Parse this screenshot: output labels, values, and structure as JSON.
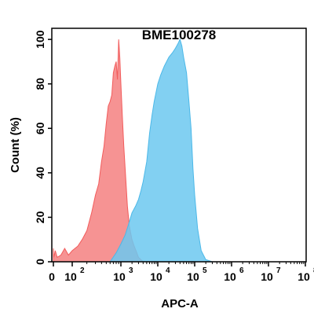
{
  "chart_data": {
    "type": "area",
    "title": "BME100278",
    "xlabel": "APC-A",
    "ylabel": "Count  (%)",
    "xscale": "biexponential-log",
    "xlim": [
      0,
      100000000
    ],
    "ylim": [
      0,
      105
    ],
    "grid": false,
    "legend": "none",
    "y_ticks": [
      {
        "value": 0,
        "label": "0"
      },
      {
        "value": 20,
        "label": "20"
      },
      {
        "value": 40,
        "label": "40"
      },
      {
        "value": 60,
        "label": "60"
      },
      {
        "value": 80,
        "label": "80"
      },
      {
        "value": 100,
        "label": "100"
      }
    ],
    "x_ticks": [
      {
        "value": 0,
        "base": "0",
        "exp": ""
      },
      {
        "value": 100,
        "base": "10",
        "exp": "2"
      },
      {
        "value": 1000,
        "base": "10",
        "exp": "3"
      },
      {
        "value": 10000,
        "base": "10",
        "exp": "4"
      },
      {
        "value": 100000,
        "base": "10",
        "exp": "5"
      },
      {
        "value": 1000000,
        "base": "10",
        "exp": "6"
      },
      {
        "value": 10000000,
        "base": "10",
        "exp": "7"
      },
      {
        "value": 100000000,
        "base": "10",
        "exp": "8"
      }
    ],
    "series": [
      {
        "color": "#f25c5c",
        "fill_color": "#f58080",
        "points": [
          [
            0,
            6
          ],
          [
            1,
            4
          ],
          [
            2,
            2
          ],
          [
            5,
            3
          ],
          [
            10,
            5
          ],
          [
            20,
            2
          ],
          [
            40,
            3
          ],
          [
            60,
            6
          ],
          [
            80,
            3
          ],
          [
            100,
            5
          ],
          [
            130,
            7
          ],
          [
            160,
            10
          ],
          [
            200,
            14
          ],
          [
            250,
            22
          ],
          [
            300,
            30
          ],
          [
            350,
            35
          ],
          [
            400,
            45
          ],
          [
            450,
            52
          ],
          [
            500,
            62
          ],
          [
            550,
            70
          ],
          [
            600,
            72
          ],
          [
            650,
            75
          ],
          [
            700,
            85
          ],
          [
            750,
            88
          ],
          [
            800,
            90
          ],
          [
            850,
            82
          ],
          [
            900,
            100
          ],
          [
            950,
            92
          ],
          [
            1000,
            80
          ],
          [
            1100,
            65
          ],
          [
            1200,
            52
          ],
          [
            1300,
            42
          ],
          [
            1500,
            25
          ],
          [
            1700,
            16
          ],
          [
            2000,
            10
          ],
          [
            2300,
            7
          ],
          [
            2700,
            4
          ],
          [
            3000,
            2
          ],
          [
            4000,
            0
          ]
        ]
      },
      {
        "color": "#4cb8e8",
        "fill_color": "#6cc8f0",
        "points": [
          [
            600,
            0
          ],
          [
            800,
            4
          ],
          [
            1000,
            8
          ],
          [
            1300,
            12
          ],
          [
            1700,
            18
          ],
          [
            2000,
            22
          ],
          [
            2500,
            25
          ],
          [
            3000,
            28
          ],
          [
            3500,
            32
          ],
          [
            4000,
            36
          ],
          [
            5000,
            45
          ],
          [
            6000,
            58
          ],
          [
            7000,
            66
          ],
          [
            8000,
            72
          ],
          [
            10000,
            80
          ],
          [
            12000,
            84
          ],
          [
            15000,
            88
          ],
          [
            20000,
            92
          ],
          [
            25000,
            94
          ],
          [
            30000,
            96
          ],
          [
            35000,
            98
          ],
          [
            40000,
            100
          ],
          [
            45000,
            97
          ],
          [
            50000,
            92
          ],
          [
            60000,
            85
          ],
          [
            70000,
            72
          ],
          [
            80000,
            60
          ],
          [
            90000,
            42
          ],
          [
            100000,
            30
          ],
          [
            120000,
            15
          ],
          [
            150000,
            5
          ],
          [
            200000,
            1
          ],
          [
            300000,
            0
          ]
        ]
      }
    ]
  }
}
